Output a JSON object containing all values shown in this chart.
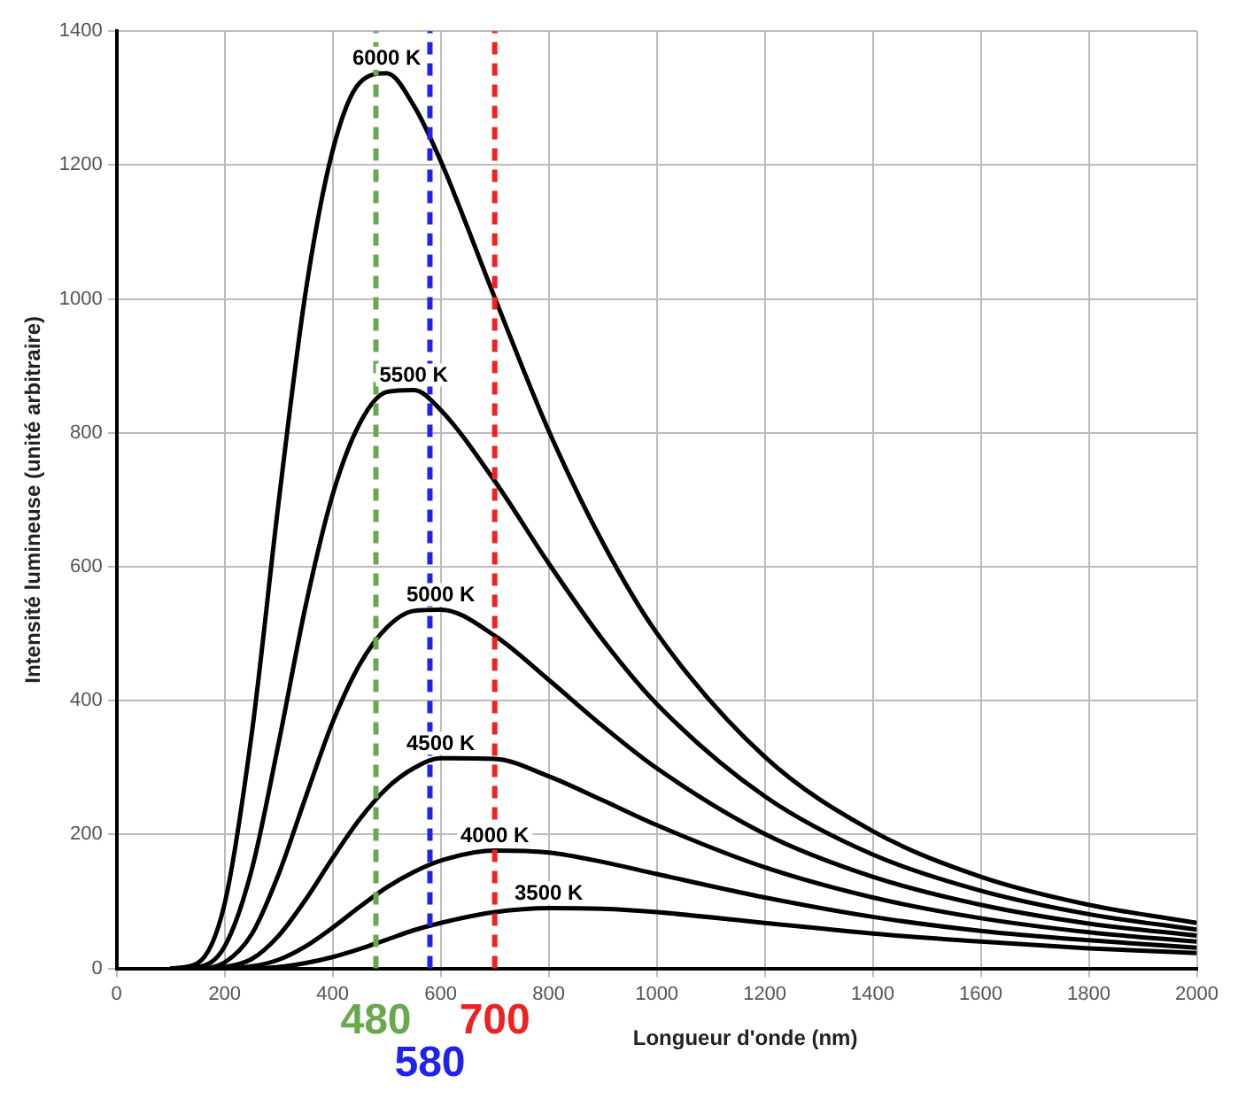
{
  "chart_data": {
    "type": "line",
    "xlabel": "Longueur d'onde (nm)",
    "ylabel": "Intensité lumineuse (unité arbitraire)",
    "x": [
      100,
      150,
      200,
      250,
      300,
      350,
      400,
      450,
      500,
      550,
      600,
      700,
      800,
      900,
      1000,
      1200,
      1400,
      1600,
      1800,
      2000
    ],
    "series": [
      {
        "name": "6000 K",
        "color": "#000000",
        "values": [
          0,
          8,
          97,
          350,
          697,
          1011,
          1222,
          1323,
          1337,
          1289,
          1206,
          1002,
          803,
          636,
          501,
          316,
          205,
          137,
          95,
          68
        ]
      },
      {
        "name": "5500 K",
        "color": "#000000",
        "values": [
          0,
          2,
          33,
          147,
          337,
          542,
          708,
          814,
          861,
          864,
          834,
          728,
          605,
          491,
          395,
          257,
          170,
          116,
          81,
          58
        ]
      },
      {
        "name": "5000 K",
        "color": "#000000",
        "values": [
          0,
          0,
          9,
          51,
          141,
          256,
          368,
          454,
          509,
          534,
          536,
          497,
          431,
          362,
          299,
          201,
          137,
          95,
          67,
          49
        ]
      },
      {
        "name": "4500 K",
        "color": "#000000",
        "values": [
          0,
          0,
          2,
          14,
          49,
          103,
          165,
          223,
          269,
          299,
          314,
          313,
          287,
          251,
          214,
          151,
          106,
          75,
          54,
          40
        ]
      },
      {
        "name": "4000 K",
        "color": "#000000",
        "values": [
          0,
          0,
          0,
          3,
          13,
          33,
          61,
          92,
          121,
          144,
          161,
          176,
          173,
          159,
          141,
          106,
          77,
          56,
          42,
          31
        ]
      },
      {
        "name": "3500 K",
        "color": "#000000",
        "values": [
          0,
          0,
          0,
          0,
          2,
          8,
          17,
          29,
          43,
          57,
          68,
          84,
          90,
          89,
          84,
          68,
          52,
          40,
          30,
          23
        ]
      }
    ],
    "xlim": [
      0,
      2000
    ],
    "xticks": [
      0,
      200,
      400,
      600,
      800,
      1000,
      1200,
      1400,
      1600,
      1800,
      2000
    ],
    "ylim": [
      0,
      1400
    ],
    "yticks": [
      0,
      200,
      400,
      600,
      800,
      1000,
      1200,
      1400
    ],
    "ref_lines": [
      {
        "axis": "x",
        "value": 480,
        "label": "480",
        "color": "#6aa84f",
        "line_style": "dashed"
      },
      {
        "axis": "x",
        "value": 580,
        "label": "580",
        "color": "#2222ee",
        "line_style": "dashed"
      },
      {
        "axis": "x",
        "value": 700,
        "label": "700",
        "color": "#ee2222",
        "line_style": "dashed"
      }
    ],
    "grid": true,
    "legend": false,
    "marker": "none",
    "line_style": "solid"
  }
}
